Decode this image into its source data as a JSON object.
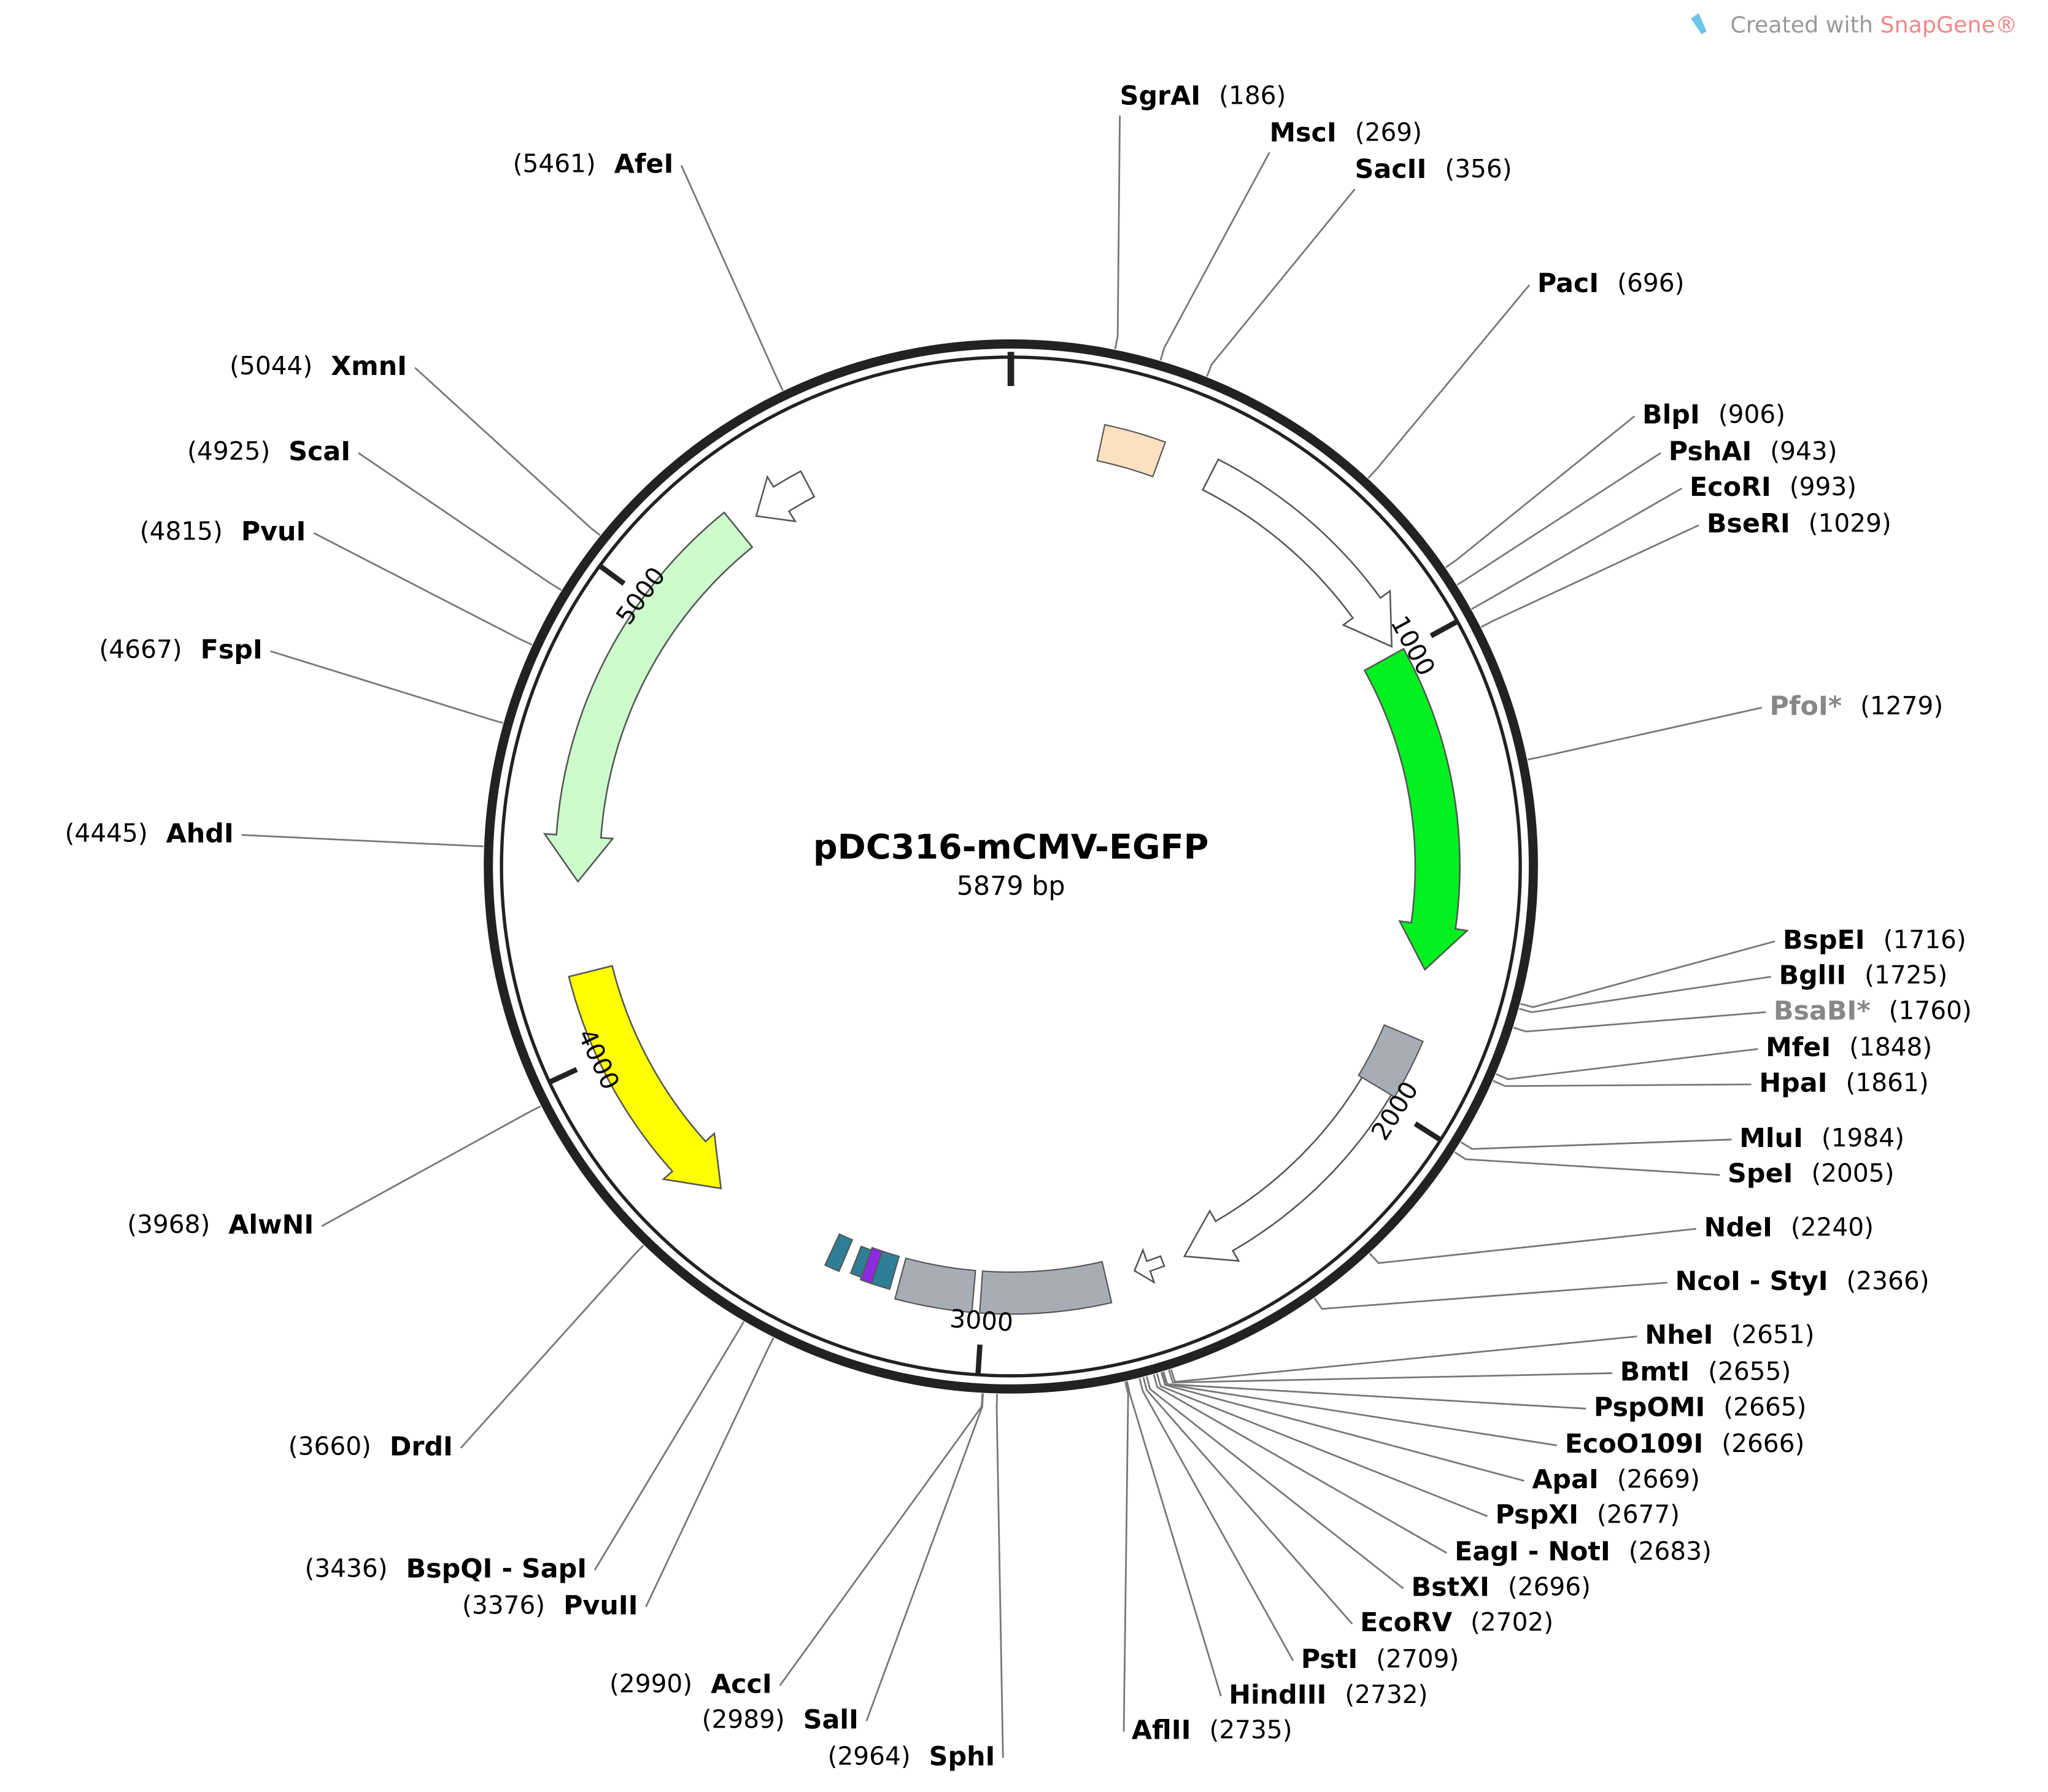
{
  "header": {
    "watermark_prefix": "Created with",
    "watermark_brand": "SnapGene®"
  },
  "plasmid": {
    "name": "pDC316-mCMV-EGFP",
    "length": 5879,
    "length_unit": "bp",
    "ticks": [
      1000,
      2000,
      3000,
      4000,
      5000
    ]
  },
  "sites": [
    {
      "name": "SgrAI",
      "position": 186
    },
    {
      "name": "MscI",
      "position": 269
    },
    {
      "name": "SacII",
      "position": 356
    },
    {
      "name": "PacI",
      "position": 696
    },
    {
      "name": "BlpI",
      "position": 906
    },
    {
      "name": "PshAI",
      "position": 943
    },
    {
      "name": "EcoRI",
      "position": 993
    },
    {
      "name": "BseRI",
      "position": 1029
    },
    {
      "name": "PfoI*",
      "position": 1279,
      "dim": true
    },
    {
      "name": "BspEI",
      "position": 1716
    },
    {
      "name": "BglII",
      "position": 1725
    },
    {
      "name": "BsaBI*",
      "position": 1760,
      "dim": true
    },
    {
      "name": "MfeI",
      "position": 1848
    },
    {
      "name": "HpaI",
      "position": 1861
    },
    {
      "name": "MluI",
      "position": 1984
    },
    {
      "name": "SpeI",
      "position": 2005
    },
    {
      "name": "NdeI",
      "position": 2240
    },
    {
      "name": "NcoI - StyI",
      "position": 2366
    },
    {
      "name": "NheI",
      "position": 2651
    },
    {
      "name": "BmtI",
      "position": 2655
    },
    {
      "name": "PspOMI",
      "position": 2665
    },
    {
      "name": "EcoO109I",
      "position": 2666
    },
    {
      "name": "ApaI",
      "position": 2669
    },
    {
      "name": "PspXI",
      "position": 2677
    },
    {
      "name": "EagI - NotI",
      "position": 2683
    },
    {
      "name": "BstXI",
      "position": 2696
    },
    {
      "name": "EcoRV",
      "position": 2702
    },
    {
      "name": "PstI",
      "position": 2709
    },
    {
      "name": "HindIII",
      "position": 2732
    },
    {
      "name": "AflII",
      "position": 2735
    },
    {
      "name": "SphI",
      "position": 2964
    },
    {
      "name": "SalI",
      "position": 2989
    },
    {
      "name": "AccI",
      "position": 2990
    },
    {
      "name": "PvuII",
      "position": 3376
    },
    {
      "name": "BspQI - SapI",
      "position": 3436
    },
    {
      "name": "DrdI",
      "position": 3660
    },
    {
      "name": "AlwNI",
      "position": 3968
    },
    {
      "name": "AhdI",
      "position": 4445
    },
    {
      "name": "FspI",
      "position": 4667
    },
    {
      "name": "PvuI",
      "position": 4815
    },
    {
      "name": "ScaI",
      "position": 4925
    },
    {
      "name": "XmnI",
      "position": 5044
    },
    {
      "name": "AfeI",
      "position": 5461
    }
  ]
}
